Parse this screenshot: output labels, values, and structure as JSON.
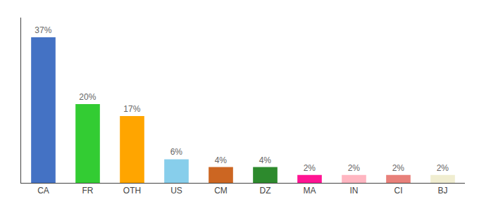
{
  "chart_data": {
    "type": "bar",
    "categories": [
      "CA",
      "FR",
      "OTH",
      "US",
      "CM",
      "DZ",
      "MA",
      "IN",
      "CI",
      "BJ"
    ],
    "values": [
      37,
      20,
      17,
      6,
      4,
      4,
      2,
      2,
      2,
      2
    ],
    "value_labels": [
      "37%",
      "20%",
      "17%",
      "6%",
      "4%",
      "4%",
      "2%",
      "2%",
      "2%",
      "2%"
    ],
    "colors": [
      "#4472C4",
      "#33CC33",
      "#FFA500",
      "#87CEEB",
      "#CC6622",
      "#2D8A2D",
      "#FF1493",
      "#FFB6C1",
      "#E8807A",
      "#F0EDD0"
    ],
    "ylim": [
      0,
      42
    ],
    "grid": false,
    "data_labels": true,
    "tick_labels": "x"
  }
}
